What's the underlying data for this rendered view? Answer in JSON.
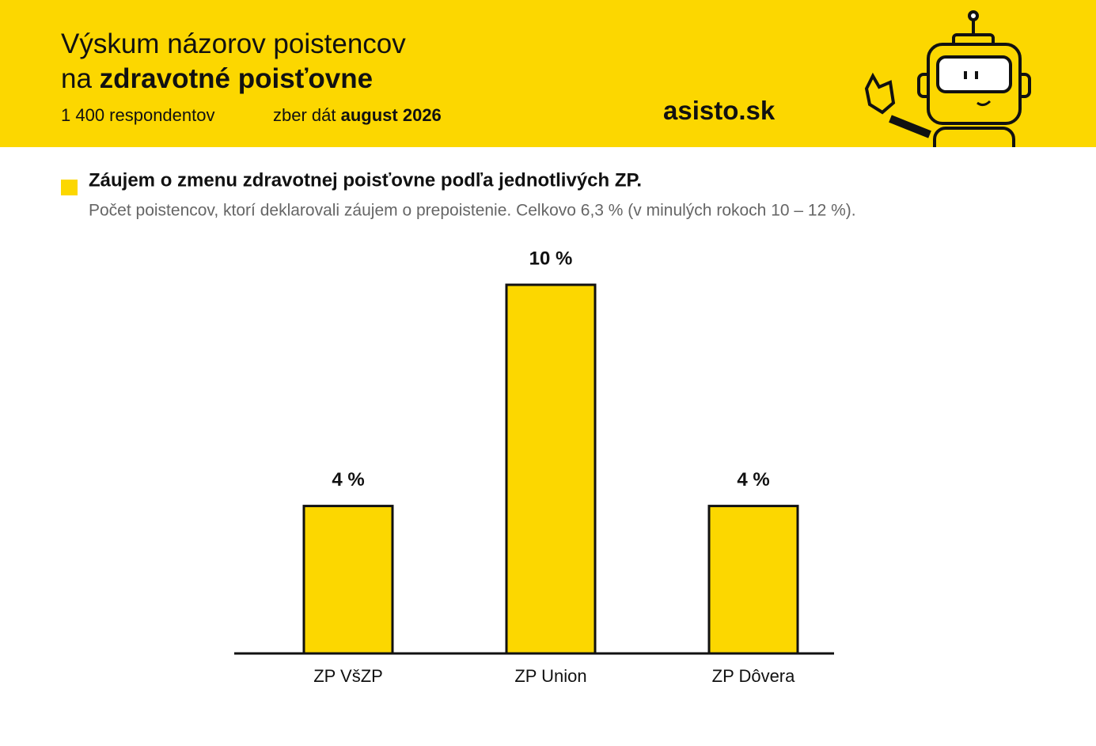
{
  "header": {
    "title_line1": "Výskum názorov poistencov",
    "title_line2_prefix": "na",
    "title_line2_bold": "zdravotné poisťovne",
    "respondents": "1 400 respondentov",
    "collection_prefix": "zber dát",
    "collection_date": "august 2026",
    "brand": "asisto.sk"
  },
  "chart_data": {
    "type": "bar",
    "title": "Záujem o zmenu zdravotnej poisťovne podľa jednotlivých ZP.",
    "subtitle": "Počet poistencov, ktorí deklarovali záujem o prepoistenie. Celkovo 6,3 % (v minulých rokoch 10 – 12 %).",
    "categories": [
      "ZP VšZP",
      "ZP Union",
      "ZP Dôvera"
    ],
    "values": [
      4,
      10,
      4
    ],
    "value_labels": [
      "4 %",
      "10 %",
      "4 %"
    ],
    "color": "#fcd700",
    "ylim": [
      0,
      10
    ]
  }
}
